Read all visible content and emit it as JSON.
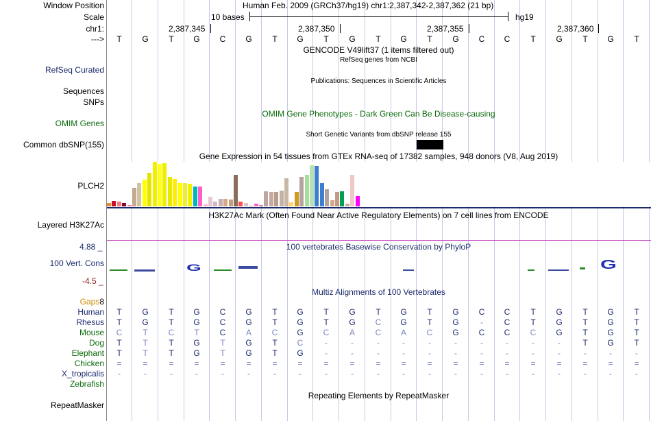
{
  "header": {
    "window_position_label": "Window Position",
    "window_position_text": "Human Feb. 2009 (GRCh37/hg19)   chr1:2,387,342-2,387,362 (21 bp)",
    "scale_label": "Scale",
    "scale_text": "10 bases",
    "assembly": "hg19",
    "chrom_label": "chr1:",
    "ticks": [
      "2,387,345",
      "2,387,350",
      "2,387,355",
      "2,387,360"
    ],
    "strand_label": "--->"
  },
  "sequence": [
    "T",
    "G",
    "T",
    "G",
    "C",
    "G",
    "T",
    "G",
    "T",
    "G",
    "T",
    "G",
    "T",
    "G",
    "C",
    "C",
    "T",
    "G",
    "T",
    "G",
    "T"
  ],
  "tracks": {
    "gencode_title": "GENCODE V49lift37 (1 items filtered out)",
    "refseq_title": "RefSeq genes from NCBI",
    "refseq_label": "RefSeq Curated",
    "publications_title": "Publications: Sequences in Scientific Articles",
    "sequences_label": "Sequences",
    "snps_label": "SNPs",
    "omim_title": "OMIM Gene Phenotypes - Dark Green Can Be Disease-causing",
    "omim_label": "OMIM Genes",
    "dbsnp_title": "Short Genetic Variants from dbSNP release 155",
    "dbsnp_label": "Common dbSNP(155)",
    "gtex_title": "Gene Expression in 54 tissues from GTEx RNA-seq of 17382 samples, 948 donors (V8, Aug 2019)",
    "gtex_label": "PLCH2",
    "h3k27ac_title": "H3K27Ac Mark (Often Found Near Active Regulatory Elements) on 7 cell lines from ENCODE",
    "h3k27ac_label": "Layered H3K27Ac",
    "cons_title": "100 vertebrates Basewise Conservation by PhyloP",
    "cons_label": "100 Vert. Cons",
    "cons_max": "4.88 _",
    "cons_min": "-4.5 _",
    "multiz_title": "Multiz Alignments of 100 Vertebrates",
    "gaps_label": "Gaps",
    "gaps_value": "8",
    "repeat_title": "Repeating Elements by RepeatMasker",
    "repeat_label": "RepeatMasker"
  },
  "gtex_values": [
    0.08,
    0.12,
    0.1,
    0.08,
    0.03,
    0.42,
    0.53,
    0.6,
    0.75,
    1.0,
    0.95,
    0.97,
    0.66,
    0.62,
    0.53,
    0.53,
    0.51,
    0.45,
    0.45,
    0.05,
    0.22,
    0.11,
    0.17,
    0.17,
    0.15,
    0.71,
    0.1,
    0.08,
    0.02,
    0.06,
    0.03,
    0.34,
    0.33,
    0.33,
    0.36,
    0.63,
    0.09,
    0.32,
    0.66,
    0.7,
    0.93,
    0.9,
    0.53,
    0.38,
    0.14,
    0.33,
    0.34,
    0.06,
    0.71,
    0.23
  ],
  "gtex_colors": [
    "#f58a25",
    "#c8102e",
    "#f57979",
    "#880035",
    "#ee82a3",
    "#c4a98e",
    "#d2c4a0",
    "#ffff00",
    "#e4e400",
    "#f0f000",
    "#ffff20",
    "#eeee00",
    "#e8e800",
    "#ffee00",
    "#ffff00",
    "#eeee30",
    "#f0f000",
    "#00b6b6",
    "#ff5ecc",
    "#ffb6c1",
    "#e4c8d4",
    "#d8b4c4",
    "#c8b0ae",
    "#d4a888",
    "#c0a080",
    "#8a6d5a",
    "#ff5050",
    "#d8c3c6",
    "#b0a8a0",
    "#ff62c7",
    "#cc88aa",
    "#bca6a0",
    "#c8a8a0",
    "#b89c8c",
    "#c4b2a4",
    "#c8b7a4",
    "#ffd46c",
    "#d09c20",
    "#b4a4a0",
    "#a6dca0",
    "#b8e0b0",
    "#3c7ed0",
    "#3c7ed0",
    "#b0a0a0",
    "#d4a88a",
    "#c09c84",
    "#00a050",
    "#c8b0a0",
    "#f0c8c4",
    "#ff00ff"
  ],
  "alignment": [
    {
      "species": "Human",
      "bases": [
        "T",
        "G",
        "T",
        "G",
        "C",
        "G",
        "T",
        "G",
        "T",
        "G",
        "T",
        "G",
        "T",
        "G",
        "C",
        "C",
        "T",
        "G",
        "T",
        "G",
        "T"
      ],
      "color": "#1b2a6b"
    },
    {
      "species": "Rhesus",
      "bases": [
        "T",
        "G",
        "T",
        "G",
        "C",
        "G",
        "T",
        "G",
        "T",
        "G",
        "C",
        "G",
        "T",
        "G",
        "-",
        "C",
        "T",
        "G",
        "T",
        "G",
        "T"
      ],
      "color": "#1b2a6b"
    },
    {
      "species": "Mouse",
      "bases": [
        "C",
        "T",
        "C",
        "T",
        "C",
        "A",
        "C",
        "G",
        "C",
        "A",
        "C",
        "A",
        "C",
        "G",
        "C",
        "C",
        "C",
        "G",
        "T",
        "G",
        "T"
      ],
      "color": "#0a6a0a"
    },
    {
      "species": "Dog",
      "bases": [
        "T",
        "T",
        "T",
        "G",
        "T",
        "G",
        "T",
        "C",
        "-",
        "-",
        "-",
        "-",
        "-",
        "-",
        "-",
        "-",
        "-",
        "-",
        "T",
        "G",
        "T"
      ],
      "color": "#0a6a0a"
    },
    {
      "species": "Elephant",
      "bases": [
        "T",
        "T",
        "T",
        "G",
        "T",
        "G",
        "T",
        "G",
        "-",
        "-",
        "-",
        "-",
        "-",
        "-",
        "-",
        "-",
        "-",
        "-",
        "-",
        "-",
        "-"
      ],
      "color": "#0a6a0a"
    },
    {
      "species": "Chicken",
      "bases": [
        "=",
        "=",
        "=",
        "=",
        "=",
        "=",
        "=",
        "=",
        "=",
        "=",
        "=",
        "=",
        "=",
        "=",
        "=",
        "=",
        "=",
        "=",
        "=",
        "=",
        "="
      ],
      "color": "#0a6a0a"
    },
    {
      "species": "X_tropicalis",
      "bases": [
        "-",
        "-",
        "-",
        "-",
        "-",
        "-",
        "-",
        "-",
        "-",
        "-",
        "-",
        "-",
        "-",
        "-",
        "-",
        "-",
        "-",
        "-",
        "-",
        "-",
        "-"
      ],
      "color": "#1b2a6b"
    },
    {
      "species": "Zebrafish",
      "bases": [
        "",
        "",
        "",
        "",
        "",
        "",
        "",
        "",
        "",
        "",
        "",
        "",
        "",
        "",
        "",
        "",
        "",
        "",
        "",
        "",
        ""
      ],
      "color": "#0a6a0a"
    }
  ],
  "colors": {
    "navy": "#1b2a6b",
    "green": "#0a6a0a",
    "orange": "#d08a00",
    "maroon": "#8b1a1a",
    "h3k27ac_line": "#c040c0",
    "gridline": "#c8c8e8"
  }
}
